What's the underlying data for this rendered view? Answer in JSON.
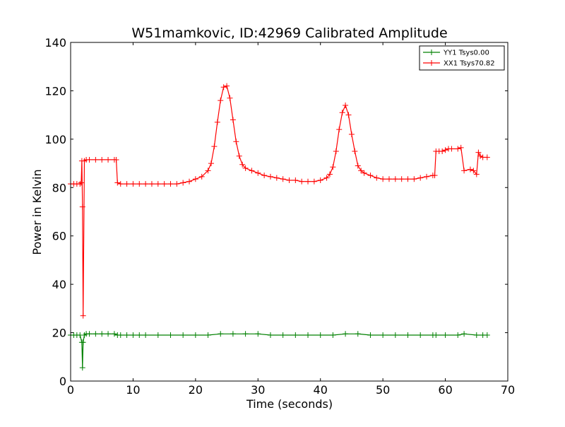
{
  "chart_data": {
    "type": "line",
    "title": "W51mamkovic, ID:42969 Calibrated Amplitude",
    "xlabel": "Time (seconds)",
    "ylabel": "Power in Kelvin",
    "xlim": [
      0,
      70
    ],
    "ylim": [
      0,
      140
    ],
    "xticks": [
      0,
      10,
      20,
      30,
      40,
      50,
      60,
      70
    ],
    "yticks": [
      0,
      20,
      40,
      60,
      80,
      100,
      120,
      140
    ],
    "grid": false,
    "legend_position": "top-right",
    "series": [
      {
        "name": "YY1 Tsys0.00",
        "color": "#008000",
        "marker": "plus",
        "x": [
          0.0,
          0.5,
          1.0,
          1.5,
          1.8,
          1.9,
          2.0,
          2.2,
          2.5,
          3.0,
          4.0,
          5.0,
          6.0,
          7.0,
          7.5,
          8.0,
          9.0,
          10.0,
          11.0,
          12.0,
          14.0,
          16.0,
          18.0,
          20.0,
          22.0,
          24.0,
          26.0,
          28.0,
          30.0,
          32.0,
          34.0,
          36.0,
          38.0,
          40.0,
          42.0,
          44.0,
          46.0,
          48.0,
          50.0,
          52.0,
          54.0,
          56.0,
          58.0,
          58.5,
          60.0,
          62.0,
          63.0,
          65.0,
          66.0,
          66.7
        ],
        "y": [
          19,
          19,
          19,
          19,
          16,
          5.5,
          16,
          19,
          19.5,
          19.5,
          19.5,
          19.5,
          19.5,
          19.5,
          19,
          19,
          19,
          19,
          19,
          19,
          19,
          19,
          19,
          19,
          19,
          19.5,
          19.5,
          19.5,
          19.5,
          19,
          19,
          19,
          19,
          19,
          19,
          19.5,
          19.5,
          19,
          19,
          19,
          19,
          19,
          19,
          19,
          19,
          19,
          19.5,
          19,
          19,
          19
        ]
      },
      {
        "name": "XX1 Tsys70.82",
        "color": "#ff0000",
        "marker": "plus",
        "x": [
          0.0,
          0.5,
          1.0,
          1.5,
          1.7,
          1.8,
          1.9,
          2.0,
          2.2,
          2.5,
          3.0,
          4.0,
          5.0,
          6.0,
          7.0,
          7.3,
          7.5,
          8.0,
          9.0,
          10.0,
          11.0,
          12.0,
          13.0,
          14.0,
          15.0,
          16.0,
          17.0,
          18.0,
          19.0,
          20.0,
          21.0,
          22.0,
          22.5,
          23.0,
          23.5,
          24.0,
          24.5,
          25.0,
          25.5,
          26.0,
          26.5,
          27.0,
          27.5,
          28.0,
          29.0,
          30.0,
          31.0,
          32.0,
          33.0,
          34.0,
          35.0,
          36.0,
          37.0,
          38.0,
          39.0,
          40.0,
          41.0,
          41.5,
          42.0,
          42.5,
          43.0,
          43.5,
          44.0,
          44.5,
          45.0,
          45.5,
          46.0,
          46.5,
          47.0,
          48.0,
          49.0,
          50.0,
          51.0,
          52.0,
          53.0,
          54.0,
          55.0,
          56.0,
          57.0,
          58.0,
          58.3,
          58.5,
          59.0,
          59.5,
          60.0,
          60.5,
          61.0,
          62.0,
          62.5,
          63.0,
          64.0,
          64.5,
          65.0,
          65.3,
          65.6,
          66.0,
          66.7
        ],
        "y": [
          81.5,
          81.5,
          81.5,
          81.5,
          82,
          91,
          72,
          27,
          91,
          91.5,
          91.5,
          91.5,
          91.5,
          91.5,
          91.5,
          91.5,
          82,
          81.5,
          81.5,
          81.5,
          81.5,
          81.5,
          81.5,
          81.5,
          81.5,
          81.5,
          81.5,
          82,
          82.5,
          83.5,
          84.5,
          87,
          90,
          97,
          107,
          116,
          121.5,
          122,
          117,
          108,
          99,
          93,
          89.5,
          88,
          87,
          86,
          85,
          84.5,
          84,
          83.5,
          83,
          83,
          82.5,
          82.5,
          82.5,
          83,
          84,
          85.5,
          88.5,
          95,
          104,
          111,
          114,
          110,
          102,
          95,
          89,
          87,
          86,
          85,
          84,
          83.5,
          83.5,
          83.5,
          83.5,
          83.5,
          83.5,
          84,
          84.5,
          85,
          85,
          95,
          95,
          95,
          95.5,
          96,
          96,
          96,
          96.5,
          87,
          87.5,
          87,
          85.5,
          94.5,
          93,
          92.5,
          92.5
        ]
      }
    ]
  }
}
